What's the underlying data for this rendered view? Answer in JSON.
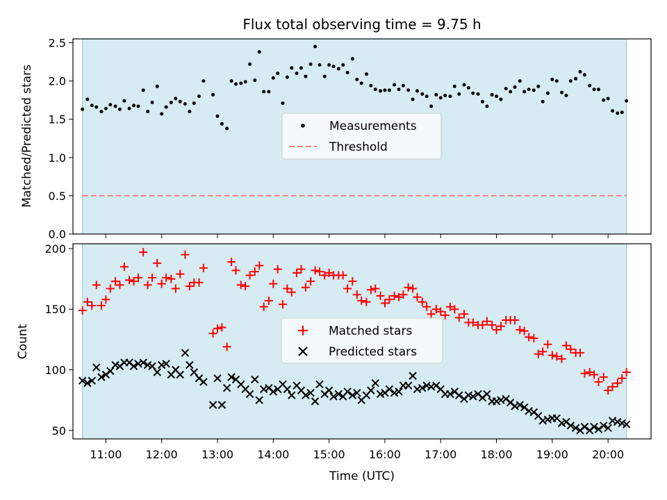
{
  "figure": {
    "title": "Flux total observing time = 9.75 h",
    "xlabel": "Time (UTC)"
  },
  "chart_data": [
    {
      "type": "scatter",
      "ylabel": "Matched/Predicted stars",
      "ylim": [
        0,
        2.55
      ],
      "yticks": [
        0.0,
        0.5,
        1.0,
        1.5,
        2.0,
        2.5
      ],
      "ytick_labels": [
        "0.0",
        "0.5",
        "1.0",
        "1.5",
        "2.0",
        "2.5"
      ],
      "xlim_hours": [
        10.41,
        20.77
      ],
      "xticks_hours": [
        11,
        12,
        13,
        14,
        15,
        16,
        17,
        18,
        19,
        20
      ],
      "xtick_labels": [
        "11:00",
        "12:00",
        "13:00",
        "14:00",
        "15:00",
        "16:00",
        "17:00",
        "18:00",
        "19:00",
        "20:00"
      ],
      "shaded_span_hours": [
        10.58,
        20.33
      ],
      "legend_position": "center",
      "series": [
        {
          "name": "Measurements",
          "marker": "dot",
          "color": "#000000",
          "x_hours": [
            10.58,
            10.67,
            10.75,
            10.83,
            10.92,
            11.0,
            11.08,
            11.17,
            11.25,
            11.33,
            11.42,
            11.5,
            11.58,
            11.67,
            11.75,
            11.83,
            11.92,
            12.0,
            12.08,
            12.17,
            12.25,
            12.33,
            12.42,
            12.5,
            12.58,
            12.67,
            12.75,
            12.92,
            13.0,
            13.08,
            13.17,
            13.25,
            13.33,
            13.42,
            13.5,
            13.58,
            13.67,
            13.75,
            13.83,
            13.92,
            14.0,
            14.08,
            14.17,
            14.25,
            14.33,
            14.42,
            14.5,
            14.58,
            14.67,
            14.75,
            14.83,
            14.92,
            15.0,
            15.08,
            15.17,
            15.25,
            15.33,
            15.42,
            15.5,
            15.58,
            15.67,
            15.75,
            15.83,
            15.92,
            16.0,
            16.08,
            16.17,
            16.25,
            16.33,
            16.42,
            16.5,
            16.58,
            16.67,
            16.75,
            16.83,
            16.92,
            17.0,
            17.08,
            17.17,
            17.25,
            17.33,
            17.42,
            17.5,
            17.58,
            17.67,
            17.75,
            17.83,
            17.92,
            18.0,
            18.08,
            18.17,
            18.25,
            18.33,
            18.42,
            18.5,
            18.58,
            18.67,
            18.75,
            18.83,
            18.92,
            19.0,
            19.08,
            19.17,
            19.25,
            19.33,
            19.42,
            19.5,
            19.58,
            19.67,
            19.75,
            19.83,
            19.92,
            20.0,
            20.08,
            20.17,
            20.25,
            20.33
          ],
          "values": [
            1.63,
            1.76,
            1.68,
            1.66,
            1.6,
            1.64,
            1.69,
            1.67,
            1.63,
            1.74,
            1.64,
            1.68,
            1.67,
            1.88,
            1.6,
            1.72,
            1.93,
            1.57,
            1.66,
            1.72,
            1.77,
            1.73,
            1.7,
            1.6,
            1.71,
            1.8,
            2.0,
            1.82,
            1.54,
            1.44,
            1.38,
            2.0,
            1.96,
            1.97,
            1.99,
            2.22,
            2.01,
            2.38,
            1.86,
            1.86,
            2.04,
            2.1,
            1.71,
            2.05,
            2.17,
            2.1,
            2.17,
            2.06,
            2.22,
            2.45,
            2.21,
            2.06,
            2.21,
            2.19,
            2.16,
            2.21,
            2.11,
            2.29,
            2.02,
            1.97,
            2.09,
            1.94,
            1.89,
            1.87,
            1.88,
            1.88,
            1.95,
            1.89,
            1.94,
            1.88,
            1.76,
            1.87,
            1.83,
            1.8,
            1.67,
            1.82,
            1.78,
            1.81,
            1.8,
            1.93,
            1.83,
            1.95,
            1.91,
            1.84,
            1.83,
            1.73,
            1.67,
            1.82,
            1.8,
            1.76,
            1.9,
            1.86,
            1.92,
            2.0,
            1.86,
            1.89,
            1.88,
            1.93,
            1.73,
            1.84,
            2.02,
            2.0,
            1.85,
            1.81,
            2.0,
            2.03,
            2.12,
            2.08,
            1.94,
            1.89,
            1.89,
            1.75,
            1.77,
            1.61,
            1.58,
            1.59,
            1.74
          ]
        },
        {
          "name": "Threshold",
          "type": "line",
          "style": "dashed",
          "color": "#f08080",
          "value": 0.5
        }
      ]
    },
    {
      "type": "scatter",
      "ylabel": "Count",
      "ylim": [
        43,
        204
      ],
      "yticks": [
        50,
        100,
        150,
        200
      ],
      "ytick_labels": [
        "50",
        "100",
        "150",
        "200"
      ],
      "legend_position": "center",
      "series": [
        {
          "name": "Matched stars",
          "marker": "plus",
          "color": "#ff0000",
          "x_hours": [
            10.58,
            10.67,
            10.75,
            10.83,
            10.92,
            11.0,
            11.08,
            11.17,
            11.25,
            11.33,
            11.42,
            11.5,
            11.58,
            11.67,
            11.75,
            11.83,
            11.92,
            12.0,
            12.08,
            12.17,
            12.25,
            12.33,
            12.42,
            12.5,
            12.58,
            12.67,
            12.75,
            12.92,
            13.0,
            13.08,
            13.17,
            13.25,
            13.33,
            13.42,
            13.5,
            13.58,
            13.67,
            13.75,
            13.83,
            13.92,
            14.0,
            14.08,
            14.17,
            14.25,
            14.33,
            14.42,
            14.5,
            14.58,
            14.67,
            14.75,
            14.83,
            14.92,
            15.0,
            15.08,
            15.17,
            15.25,
            15.33,
            15.42,
            15.5,
            15.58,
            15.67,
            15.75,
            15.83,
            15.92,
            16.0,
            16.08,
            16.17,
            16.25,
            16.33,
            16.42,
            16.5,
            16.58,
            16.67,
            16.75,
            16.83,
            16.92,
            17.0,
            17.08,
            17.17,
            17.25,
            17.33,
            17.42,
            17.5,
            17.58,
            17.67,
            17.75,
            17.83,
            17.92,
            18.0,
            18.08,
            18.17,
            18.25,
            18.33,
            18.42,
            18.5,
            18.58,
            18.67,
            18.75,
            18.83,
            18.92,
            19.0,
            19.08,
            19.17,
            19.25,
            19.33,
            19.42,
            19.5,
            19.58,
            19.67,
            19.75,
            19.83,
            19.92,
            20.0,
            20.08,
            20.17,
            20.25,
            20.33
          ],
          "values": [
            149,
            156,
            153,
            170,
            153,
            158,
            167,
            173,
            170,
            185,
            174,
            173,
            176,
            197,
            170,
            176,
            188,
            171,
            176,
            175,
            167,
            179,
            195,
            169,
            172,
            172,
            184,
            130,
            134,
            135,
            119,
            189,
            182,
            170,
            169,
            178,
            181,
            186,
            152,
            157,
            171,
            183,
            154,
            167,
            164,
            180,
            183,
            168,
            173,
            182,
            181,
            178,
            180,
            178,
            178,
            178,
            167,
            173,
            162,
            157,
            156,
            166,
            167,
            161,
            155,
            158,
            161,
            160,
            162,
            168,
            167,
            160,
            156,
            152,
            146,
            150,
            148,
            145,
            152,
            150,
            143,
            146,
            139,
            139,
            137,
            137,
            140,
            137,
            133,
            136,
            141,
            141,
            141,
            133,
            132,
            127,
            126,
            113,
            115,
            121,
            112,
            111,
            109,
            120,
            117,
            114,
            114,
            97,
            98,
            96,
            90,
            94,
            83,
            86,
            89,
            93,
            98
          ]
        },
        {
          "name": "Predicted stars",
          "marker": "x",
          "color": "#000000",
          "x_hours": [
            10.58,
            10.67,
            10.75,
            10.83,
            10.92,
            11.0,
            11.08,
            11.17,
            11.25,
            11.33,
            11.42,
            11.5,
            11.58,
            11.67,
            11.75,
            11.83,
            11.92,
            12.0,
            12.08,
            12.17,
            12.25,
            12.33,
            12.42,
            12.5,
            12.58,
            12.67,
            12.75,
            12.92,
            13.0,
            13.08,
            13.17,
            13.25,
            13.33,
            13.42,
            13.5,
            13.58,
            13.67,
            13.75,
            13.83,
            13.92,
            14.0,
            14.08,
            14.17,
            14.25,
            14.33,
            14.42,
            14.5,
            14.58,
            14.67,
            14.75,
            14.83,
            14.92,
            15.0,
            15.08,
            15.17,
            15.25,
            15.33,
            15.42,
            15.5,
            15.58,
            15.67,
            15.75,
            15.83,
            15.92,
            16.0,
            16.08,
            16.17,
            16.25,
            16.33,
            16.42,
            16.5,
            16.58,
            16.67,
            16.75,
            16.83,
            16.92,
            17.0,
            17.08,
            17.17,
            17.25,
            17.33,
            17.42,
            17.5,
            17.58,
            17.67,
            17.75,
            17.83,
            17.92,
            18.0,
            18.08,
            18.17,
            18.25,
            18.33,
            18.42,
            18.5,
            18.58,
            18.67,
            18.75,
            18.83,
            18.92,
            19.0,
            19.08,
            19.17,
            19.25,
            19.33,
            19.42,
            19.5,
            19.58,
            19.67,
            19.75,
            19.83,
            19.92,
            20.0,
            20.08,
            20.17,
            20.25,
            20.33
          ],
          "values": [
            91,
            89,
            91,
            102,
            94,
            96,
            99,
            104,
            103,
            106,
            106,
            103,
            105,
            106,
            104,
            103,
            98,
            104,
            105,
            96,
            100,
            96,
            114,
            104,
            98,
            93,
            90,
            71,
            93,
            71,
            85,
            94,
            92,
            88,
            84,
            80,
            92,
            75,
            84,
            85,
            82,
            84,
            88,
            84,
            79,
            87,
            83,
            79,
            81,
            74,
            88,
            80,
            83,
            78,
            80,
            78,
            82,
            79,
            81,
            75,
            79,
            83,
            89,
            80,
            81,
            84,
            81,
            82,
            87,
            87,
            95,
            84,
            85,
            87,
            86,
            87,
            84,
            80,
            80,
            82,
            79,
            76,
            79,
            78,
            80,
            77,
            80,
            74,
            74,
            75,
            76,
            73,
            70,
            71,
            69,
            66,
            65,
            62,
            58,
            59,
            60,
            60,
            56,
            57,
            54,
            52,
            50,
            53,
            50,
            53,
            51,
            54,
            52,
            58,
            57,
            56,
            55
          ]
        }
      ]
    }
  ]
}
